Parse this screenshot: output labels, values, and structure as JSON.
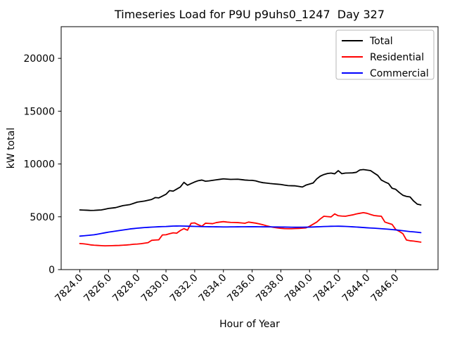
{
  "figure": {
    "window_background": "#ffffff"
  },
  "chart_data": {
    "type": "line",
    "title": "Timeseries Load for P9U p9uhs0_1247  Day 327",
    "xlabel": "Hour of Year",
    "ylabel": "kW total",
    "xlim": [
      7822.7,
      7848.95
    ],
    "ylim": [
      0,
      23000
    ],
    "grid": false,
    "legend_position": "upper right",
    "xtick_labels": [
      "7824.0",
      "7826.0",
      "7828.0",
      "7830.0",
      "7832.0",
      "7834.0",
      "7836.0",
      "7838.0",
      "7840.0",
      "7842.0",
      "7844.0",
      "7846.0"
    ],
    "ytick_labels": [
      "0",
      "5000",
      "10000",
      "15000",
      "20000"
    ],
    "x": [
      7824.0,
      7824.25,
      7824.5,
      7824.75,
      7825.0,
      7825.25,
      7825.5,
      7825.75,
      7826.0,
      7826.25,
      7826.5,
      7826.75,
      7827.0,
      7827.25,
      7827.5,
      7827.75,
      7828.0,
      7828.25,
      7828.5,
      7828.75,
      7829.0,
      7829.25,
      7829.5,
      7829.75,
      7830.0,
      7830.25,
      7830.5,
      7830.75,
      7831.0,
      7831.25,
      7831.5,
      7831.75,
      7832.0,
      7832.25,
      7832.5,
      7832.75,
      7833.0,
      7833.25,
      7833.5,
      7833.75,
      7834.0,
      7834.25,
      7834.5,
      7834.75,
      7835.0,
      7835.25,
      7835.5,
      7835.75,
      7836.0,
      7836.25,
      7836.5,
      7836.75,
      7837.0,
      7837.25,
      7837.5,
      7837.75,
      7838.0,
      7838.25,
      7838.5,
      7838.75,
      7839.0,
      7839.25,
      7839.5,
      7839.75,
      7840.0,
      7840.25,
      7840.5,
      7840.75,
      7841.0,
      7841.25,
      7841.5,
      7841.75,
      7842.0,
      7842.25,
      7842.5,
      7842.75,
      7843.0,
      7843.25,
      7843.5,
      7843.75,
      7844.0,
      7844.25,
      7844.5,
      7844.75,
      7845.0,
      7845.25,
      7845.5,
      7845.75,
      7846.0,
      7846.25,
      7846.5,
      7846.75,
      7847.0,
      7847.25,
      7847.5,
      7847.75
    ],
    "series": [
      {
        "name": "Total",
        "color": "#000000",
        "values": [
          5650,
          5635,
          5620,
          5600,
          5610,
          5630,
          5650,
          5720,
          5790,
          5830,
          5870,
          5965,
          6060,
          6110,
          6160,
          6275,
          6390,
          6440,
          6490,
          6565,
          6640,
          6820,
          6790,
          6960,
          7130,
          7480,
          7430,
          7625,
          7820,
          8260,
          7990,
          8150,
          8300,
          8420,
          8480,
          8370,
          8400,
          8450,
          8500,
          8545,
          8590,
          8565,
          8540,
          8550,
          8560,
          8520,
          8480,
          8460,
          8450,
          8400,
          8300,
          8230,
          8190,
          8150,
          8120,
          8090,
          8060,
          8000,
          7950,
          7940,
          7930,
          7880,
          7820,
          8000,
          8100,
          8200,
          8590,
          8850,
          9000,
          9100,
          9140,
          9070,
          9370,
          9080,
          9140,
          9150,
          9160,
          9210,
          9430,
          9470,
          9420,
          9370,
          9140,
          8920,
          8480,
          8300,
          8150,
          7700,
          7600,
          7300,
          7040,
          6930,
          6880,
          6490,
          6200,
          6120
        ]
      },
      {
        "name": "Residential",
        "color": "#ff0000",
        "values": [
          2470,
          2440,
          2400,
          2340,
          2310,
          2290,
          2270,
          2250,
          2260,
          2270,
          2280,
          2290,
          2310,
          2330,
          2360,
          2400,
          2420,
          2450,
          2500,
          2550,
          2770,
          2800,
          2820,
          3280,
          3300,
          3400,
          3480,
          3450,
          3700,
          3880,
          3730,
          4390,
          4420,
          4250,
          4100,
          4390,
          4370,
          4350,
          4450,
          4500,
          4540,
          4500,
          4470,
          4460,
          4450,
          4420,
          4390,
          4500,
          4450,
          4400,
          4330,
          4250,
          4150,
          4060,
          4000,
          3950,
          3910,
          3880,
          3870,
          3870,
          3890,
          3900,
          3920,
          3950,
          4100,
          4300,
          4500,
          4800,
          5050,
          5020,
          4990,
          5270,
          5100,
          5070,
          5050,
          5120,
          5180,
          5270,
          5330,
          5390,
          5330,
          5220,
          5120,
          5080,
          5050,
          4500,
          4390,
          4280,
          3800,
          3620,
          3400,
          2800,
          2730,
          2700,
          2650,
          2600
        ]
      },
      {
        "name": "Commercial",
        "color": "#0000ff",
        "values": [
          3170,
          3200,
          3230,
          3265,
          3300,
          3360,
          3420,
          3485,
          3550,
          3600,
          3650,
          3700,
          3750,
          3800,
          3850,
          3885,
          3920,
          3950,
          3980,
          4000,
          4020,
          4040,
          4060,
          4070,
          4080,
          4100,
          4120,
          4125,
          4130,
          4120,
          4110,
          4100,
          4090,
          4080,
          4070,
          4065,
          4060,
          4055,
          4050,
          4045,
          4040,
          4040,
          4045,
          4048,
          4050,
          4055,
          4055,
          4058,
          4060,
          4058,
          4055,
          4052,
          4050,
          4045,
          4040,
          4035,
          4030,
          4025,
          4020,
          4015,
          4010,
          4012,
          4015,
          4018,
          4020,
          4035,
          4050,
          4065,
          4080,
          4090,
          4100,
          4105,
          4110,
          4100,
          4090,
          4070,
          4050,
          4030,
          4010,
          3985,
          3960,
          3940,
          3920,
          3895,
          3870,
          3845,
          3820,
          3790,
          3760,
          3720,
          3680,
          3640,
          3600,
          3570,
          3540,
          3500
        ]
      }
    ]
  }
}
